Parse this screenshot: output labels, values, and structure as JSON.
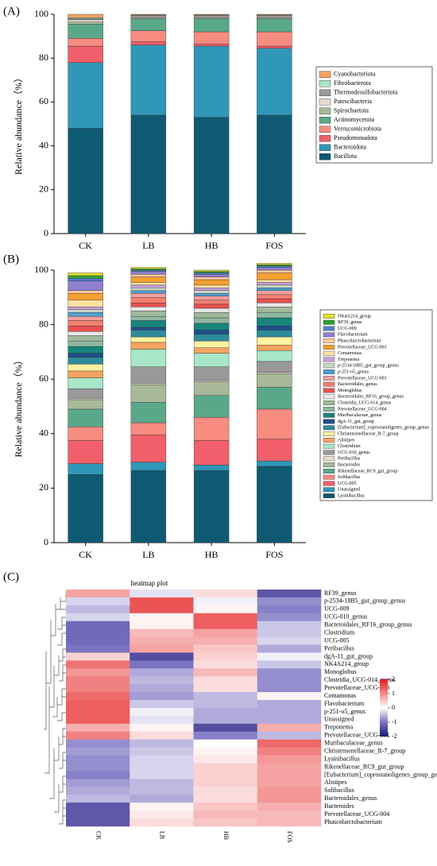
{
  "chart_data": [
    {
      "type": "bar",
      "panel_label": "(A)",
      "stacked": true,
      "ylabel": "Relative abundance（%）",
      "categories": [
        "CK",
        "LB",
        "HB",
        "FOS"
      ],
      "ylim": [
        0,
        100
      ],
      "yticks": [
        0,
        20,
        40,
        60,
        80,
        100
      ],
      "series": [
        {
          "name": "Bacillota",
          "color": "#0e5a72",
          "values": [
            48,
            54,
            53,
            54
          ]
        },
        {
          "name": "Bacteroidota",
          "color": "#2f97b8",
          "values": [
            30,
            32,
            32.5,
            30.5
          ]
        },
        {
          "name": "Pseudomonadota",
          "color": "#f1606a",
          "values": [
            7.5,
            1.5,
            1,
            1
          ]
        },
        {
          "name": "Verrucomicrobiota",
          "color": "#f78c80",
          "values": [
            3.5,
            5,
            5.5,
            6.5
          ]
        },
        {
          "name": "Actinomycetota",
          "color": "#5aa88a",
          "values": [
            6.5,
            5.5,
            6,
            6
          ]
        },
        {
          "name": "Spirochaetota",
          "color": "#a8b99a",
          "values": [
            1,
            0.3,
            0.3,
            0.3
          ]
        },
        {
          "name": "Patescibacteria",
          "color": "#e6ddd0",
          "values": [
            1,
            0.5,
            0.5,
            0.5
          ]
        },
        {
          "name": "Thermodesulfobacteriota",
          "color": "#999999",
          "values": [
            0.5,
            0.7,
            0.7,
            0.7
          ]
        },
        {
          "name": "Fibrobacterota",
          "color": "#a8e6c8",
          "values": [
            0.5,
            0.2,
            0.2,
            0.2
          ]
        },
        {
          "name": "Cyanobacteriota",
          "color": "#f4a460",
          "values": [
            1.5,
            0.3,
            0.3,
            0.3
          ]
        }
      ]
    },
    {
      "type": "bar",
      "panel_label": "(B)",
      "stacked": true,
      "ylabel": "Relative abundance（%）",
      "categories": [
        "CK",
        "LB",
        "HB",
        "FOS"
      ],
      "ylim": [
        0,
        100
      ],
      "yticks": [
        0,
        20,
        40,
        60,
        80,
        100
      ],
      "series": [
        {
          "name": "Lysinibacillus",
          "color": "#0e5a72",
          "values": [
            25,
            26.5,
            26.5,
            28
          ]
        },
        {
          "name": "Unassigned",
          "color": "#2f97b8",
          "values": [
            4,
            3,
            2,
            2
          ]
        },
        {
          "name": "UCG-005",
          "color": "#f1606a",
          "values": [
            8.5,
            10,
            9,
            8
          ]
        },
        {
          "name": "Solibacillus",
          "color": "#f78c80",
          "values": [
            5,
            4.5,
            8.5,
            11
          ]
        },
        {
          "name": "Rikenellaceae_RC9_gut_group",
          "color": "#5aa88a",
          "values": [
            6.5,
            7.5,
            8,
            8
          ]
        },
        {
          "name": "Bacteroides",
          "color": "#a8b99a",
          "values": [
            3.5,
            6.5,
            5,
            5
          ]
        },
        {
          "name": "Peribacillus",
          "color": "#e6ddd0",
          "values": [
            0.5,
            0.5,
            0.5,
            0.5
          ]
        },
        {
          "name": "UCG-010_genus",
          "color": "#999999",
          "values": [
            3.5,
            6,
            5,
            4
          ]
        },
        {
          "name": "Clostridium",
          "color": "#a8e6c8",
          "values": [
            4,
            6.5,
            5,
            4
          ]
        },
        {
          "name": "Alistipes",
          "color": "#f4a460",
          "values": [
            2.5,
            2.5,
            2,
            2
          ]
        },
        {
          "name": "Christensenellaceae_R-7_group",
          "color": "#fff2a0",
          "values": [
            2.5,
            2,
            2.5,
            3
          ]
        },
        {
          "name": "[Eubacterium]_coprostanoligenes_group_genus",
          "color": "#2e8b9a",
          "values": [
            2.5,
            2.5,
            2.5,
            2.5
          ]
        },
        {
          "name": "dgA-11_gut_group",
          "color": "#1f4e8c",
          "values": [
            1.5,
            1,
            1.5,
            1.5
          ]
        },
        {
          "name": "Muribaculaceae_genus",
          "color": "#17857a",
          "values": [
            2.5,
            2.5,
            2.5,
            3
          ]
        },
        {
          "name": "Prevotellaceae_UCG-004",
          "color": "#8fb8a0",
          "values": [
            2,
            1.5,
            2,
            2
          ]
        },
        {
          "name": "Clostridia_UCG-014_genus",
          "color": "#a0b89a",
          "values": [
            2,
            2,
            2,
            2
          ]
        },
        {
          "name": "Bacteroidales_RF16_group_genus",
          "color": "#e8e8e8",
          "values": [
            1.5,
            1.5,
            1.5,
            1.5
          ]
        },
        {
          "name": "Monoglobus",
          "color": "#e85050",
          "values": [
            2,
            1.5,
            1.5,
            1.5
          ]
        },
        {
          "name": "Bacteroidales_genus",
          "color": "#f48070",
          "values": [
            2,
            2,
            1.5,
            1.5
          ]
        },
        {
          "name": "Prevotellaceae_UCG-001",
          "color": "#f0a0a0",
          "values": [
            1.5,
            1.5,
            1.5,
            1.5
          ]
        },
        {
          "name": "p-251-o5_genus",
          "color": "#4f9fd0",
          "values": [
            1.5,
            1,
            1,
            1
          ]
        },
        {
          "name": "p-2534-18B5_gut_group_genus",
          "color": "#c8d8c8",
          "values": [
            1,
            1,
            1,
            1
          ]
        },
        {
          "name": "Treponema",
          "color": "#c8a0d8",
          "values": [
            1,
            1,
            1,
            1
          ]
        },
        {
          "name": "Comamonas",
          "color": "#ffe0a0",
          "values": [
            2.5,
            1,
            1,
            1
          ]
        },
        {
          "name": "Prevotellaceae_UCG-003",
          "color": "#f4a030",
          "values": [
            2.5,
            2,
            2,
            2.5
          ]
        },
        {
          "name": "Phascolarctobacterium",
          "color": "#ffc8a0",
          "values": [
            1,
            1,
            1,
            1
          ]
        },
        {
          "name": "Flavobacterium",
          "color": "#9080d0",
          "values": [
            3.5,
            1,
            1,
            1
          ]
        },
        {
          "name": "UCG-009",
          "color": "#5080c8",
          "values": [
            1,
            0.5,
            0.5,
            0.5
          ]
        },
        {
          "name": "RF39_genus",
          "color": "#30a030",
          "values": [
            1,
            0.5,
            0.5,
            0.5
          ]
        },
        {
          "name": "NK4A214_group",
          "color": "#e8e030",
          "values": [
            1,
            0.5,
            0.5,
            0.5
          ]
        }
      ]
    },
    {
      "type": "heatmap",
      "panel_label": "(C)",
      "title": "heatmap plot",
      "categories": [
        "CK",
        "LB",
        "HB",
        "FOS"
      ],
      "rows": [
        "RF39_genus",
        "p-2534-18B5_gut_group_genus",
        "UCG-009",
        "UCG-010_genus",
        "Bacteroidales_RF16_group_genus",
        "Clostridium",
        "UCG-005",
        "Peribacillus",
        "dgA-11_gut_group",
        "NK4A214_group",
        "Monoglobus",
        "Clostridia_UCG-014_genus",
        "Prevotellaceae_UCG-003",
        "Comamonas",
        "Flavobacterium",
        "p-251-o5_genus",
        "Unassigned",
        "Treponema",
        "Prevotellaceae_UCG-001",
        "Muribaculaceae_genus",
        "Christensenellaceae_R-7_group",
        "Lysinibacillus",
        "Rikenellaceae_RC9_gut_group",
        "[Eubacterium]_coprostanoligenes_group_ge",
        "Alistipes",
        "Solibacillus",
        "Bacteroidales_genus",
        "Bacteroides",
        "Prevotellaceae_UCG-004",
        "Phascolarctobacterium"
      ],
      "values": [
        [
          0.8,
          -0.2,
          0.3,
          -1.3
        ],
        [
          -0.3,
          1.5,
          -0.1,
          -0.8
        ],
        [
          -0.5,
          1.5,
          0.1,
          -0.9
        ],
        [
          -0.3,
          0.1,
          1.4,
          -0.8
        ],
        [
          -1.1,
          0.1,
          1.4,
          -0.4
        ],
        [
          -1.1,
          0.6,
          0.8,
          -0.4
        ],
        [
          -1.1,
          0.7,
          0.7,
          -0.3
        ],
        [
          -1.0,
          0.8,
          0.5,
          -0.6
        ],
        [
          0.4,
          -1.4,
          0.4,
          -0.1
        ],
        [
          1.2,
          -1.0,
          0.3,
          -0.4
        ],
        [
          0.9,
          -0.6,
          0.6,
          -0.8
        ],
        [
          1.1,
          -0.5,
          0.3,
          -0.8
        ],
        [
          1.1,
          -0.6,
          0.3,
          -0.8
        ],
        [
          1.3,
          -0.7,
          -0.5,
          0.1
        ],
        [
          1.4,
          -0.4,
          -0.5,
          -0.6
        ],
        [
          1.4,
          -0.1,
          -0.6,
          -0.6
        ],
        [
          1.4,
          -0.2,
          -0.6,
          -0.6
        ],
        [
          0.7,
          0.1,
          -1.4,
          0.7
        ],
        [
          1.1,
          0.3,
          -0.9,
          -0.5
        ],
        [
          -0.8,
          -0.5,
          0.0,
          1.3
        ],
        [
          -0.7,
          -0.4,
          0.1,
          1.1
        ],
        [
          -0.8,
          -0.3,
          0.2,
          0.9
        ],
        [
          -0.8,
          -0.3,
          0.4,
          0.8
        ],
        [
          -0.9,
          -0.3,
          0.4,
          0.8
        ],
        [
          -0.7,
          -0.5,
          0.4,
          0.8
        ],
        [
          -0.6,
          -0.5,
          0.3,
          0.9
        ],
        [
          -0.5,
          -0.6,
          0.3,
          0.9
        ],
        [
          -1.3,
          0.1,
          0.5,
          0.7
        ],
        [
          -1.3,
          0.2,
          0.6,
          0.6
        ],
        [
          -1.3,
          0.3,
          0.5,
          0.6
        ]
      ],
      "zlim": [
        -2,
        2
      ],
      "zticks": [
        2,
        1,
        0,
        -1,
        -2
      ],
      "colorscale": [
        "#191970",
        "#7b72c2",
        "#ffffff",
        "#f28b8b",
        "#e31a1c"
      ]
    }
  ]
}
